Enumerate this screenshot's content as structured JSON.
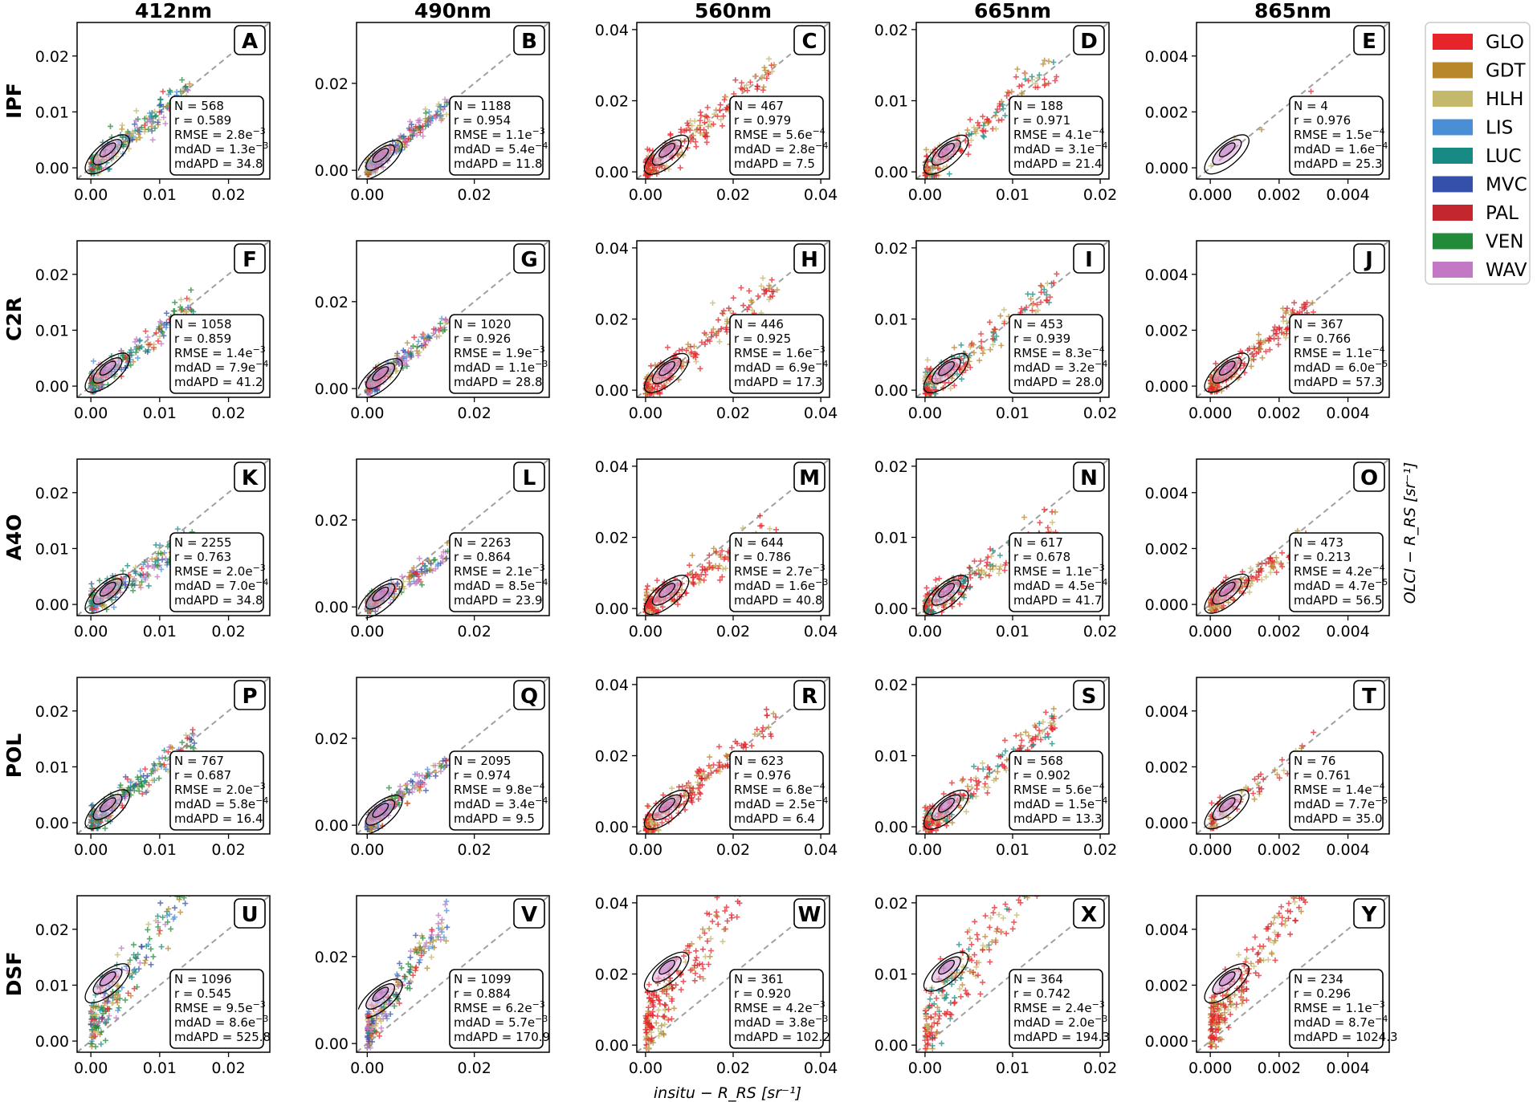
{
  "column_headers": [
    "412nm",
    "490nm",
    "560nm",
    "665nm",
    "865nm"
  ],
  "row_headers": [
    "IPF",
    "C2R",
    "A4O",
    "POL",
    "DSF"
  ],
  "legend": [
    {
      "name": "GLO",
      "color": "#e8242b"
    },
    {
      "name": "GDT",
      "color": "#b8862b"
    },
    {
      "name": "HLH",
      "color": "#c4b86a"
    },
    {
      "name": "LIS",
      "color": "#4a8fd6"
    },
    {
      "name": "LUC",
      "color": "#178a84"
    },
    {
      "name": "MVC",
      "color": "#3550a8"
    },
    {
      "name": "PAL",
      "color": "#c4262e"
    },
    {
      "name": "VEN",
      "color": "#228b3a"
    },
    {
      "name": "WAV",
      "color": "#c278c4"
    }
  ],
  "xlabel": "insitu − R_RS [sr⁻¹]",
  "ylabel": "OLCI − R_RS [sr⁻¹]",
  "chart_data": {
    "type": "scatter",
    "columns": [
      {
        "name": "412nm",
        "xlim": [
          -0.002,
          0.026
        ],
        "ylim": [
          -0.002,
          0.026
        ],
        "xticks": [
          "0.00",
          "0.01",
          "0.02"
        ],
        "xtick_values": [
          0,
          0.01,
          0.02
        ],
        "yticks": [
          "0.00",
          "0.01",
          "0.02"
        ],
        "ytick_values": [
          0,
          0.01,
          0.02
        ]
      },
      {
        "name": "490nm",
        "xlim": [
          -0.002,
          0.034
        ],
        "ylim": [
          -0.002,
          0.034
        ],
        "xticks": [
          "0.00",
          "0.02"
        ],
        "xtick_values": [
          0,
          0.02
        ],
        "yticks": [
          "0.00",
          "0.02"
        ],
        "ytick_values": [
          0,
          0.02
        ]
      },
      {
        "name": "560nm",
        "xlim": [
          -0.002,
          0.042
        ],
        "ylim": [
          -0.002,
          0.042
        ],
        "xticks": [
          "0.00",
          "0.02",
          "0.04"
        ],
        "xtick_values": [
          0,
          0.02,
          0.04
        ],
        "yticks": [
          "0.00",
          "0.02",
          "0.04"
        ],
        "ytick_values": [
          0,
          0.02,
          0.04
        ]
      },
      {
        "name": "665nm",
        "xlim": [
          -0.001,
          0.021
        ],
        "ylim": [
          -0.001,
          0.021
        ],
        "xticks": [
          "0.00",
          "0.01",
          "0.02"
        ],
        "xtick_values": [
          0,
          0.01,
          0.02
        ],
        "yticks": [
          "0.00",
          "0.01",
          "0.02"
        ],
        "ytick_values": [
          0,
          0.01,
          0.02
        ]
      },
      {
        "name": "865nm",
        "xlim": [
          -0.0004,
          0.0052
        ],
        "ylim": [
          -0.0004,
          0.0052
        ],
        "xticks": [
          "0.000",
          "0.002",
          "0.004"
        ],
        "xtick_values": [
          0,
          0.002,
          0.004
        ],
        "yticks": [
          "0.000",
          "0.002",
          "0.004"
        ],
        "ytick_values": [
          0,
          0.002,
          0.004
        ]
      }
    ],
    "panels": [
      {
        "letter": "A",
        "row": 0,
        "col": 0,
        "N": "568",
        "r": "0.589",
        "RMSE": "2.8e",
        "RMSE_exp": "−3",
        "mdAD": "1.3e",
        "mdAD_exp": "−3",
        "mdAPD": "34.8"
      },
      {
        "letter": "B",
        "row": 0,
        "col": 1,
        "N": "1188",
        "r": "0.954",
        "RMSE": "1.1e",
        "RMSE_exp": "−3",
        "mdAD": "5.4e",
        "mdAD_exp": "−4",
        "mdAPD": "11.8"
      },
      {
        "letter": "C",
        "row": 0,
        "col": 2,
        "N": "467",
        "r": "0.979",
        "RMSE": "5.6e",
        "RMSE_exp": "−4",
        "mdAD": "2.8e",
        "mdAD_exp": "−4",
        "mdAPD": "7.5"
      },
      {
        "letter": "D",
        "row": 0,
        "col": 3,
        "N": "188",
        "r": "0.971",
        "RMSE": "4.1e",
        "RMSE_exp": "−4",
        "mdAD": "3.1e",
        "mdAD_exp": "−4",
        "mdAPD": "21.4"
      },
      {
        "letter": "E",
        "row": 0,
        "col": 4,
        "N": "4",
        "r": "0.976",
        "RMSE": "1.5e",
        "RMSE_exp": "−4",
        "mdAD": "1.6e",
        "mdAD_exp": "−4",
        "mdAPD": "25.3"
      },
      {
        "letter": "F",
        "row": 1,
        "col": 0,
        "N": "1058",
        "r": "0.859",
        "RMSE": "1.4e",
        "RMSE_exp": "−3",
        "mdAD": "7.9e",
        "mdAD_exp": "−4",
        "mdAPD": "41.2"
      },
      {
        "letter": "G",
        "row": 1,
        "col": 1,
        "N": "1020",
        "r": "0.926",
        "RMSE": "1.9e",
        "RMSE_exp": "−3",
        "mdAD": "1.1e",
        "mdAD_exp": "−3",
        "mdAPD": "28.8"
      },
      {
        "letter": "H",
        "row": 1,
        "col": 2,
        "N": "446",
        "r": "0.925",
        "RMSE": "1.6e",
        "RMSE_exp": "−3",
        "mdAD": "6.9e",
        "mdAD_exp": "−4",
        "mdAPD": "17.3"
      },
      {
        "letter": "I",
        "row": 1,
        "col": 3,
        "N": "453",
        "r": "0.939",
        "RMSE": "8.3e",
        "RMSE_exp": "−4",
        "mdAD": "3.2e",
        "mdAD_exp": "−4",
        "mdAPD": "28.0"
      },
      {
        "letter": "J",
        "row": 1,
        "col": 4,
        "N": "367",
        "r": "0.766",
        "RMSE": "1.1e",
        "RMSE_exp": "−4",
        "mdAD": "6.0e",
        "mdAD_exp": "−5",
        "mdAPD": "57.3"
      },
      {
        "letter": "K",
        "row": 2,
        "col": 0,
        "N": "2255",
        "r": "0.763",
        "RMSE": "2.0e",
        "RMSE_exp": "−3",
        "mdAD": "7.0e",
        "mdAD_exp": "−4",
        "mdAPD": "34.8"
      },
      {
        "letter": "L",
        "row": 2,
        "col": 1,
        "N": "2263",
        "r": "0.864",
        "RMSE": "2.1e",
        "RMSE_exp": "−3",
        "mdAD": "8.5e",
        "mdAD_exp": "−4",
        "mdAPD": "23.9"
      },
      {
        "letter": "M",
        "row": 2,
        "col": 2,
        "N": "644",
        "r": "0.786",
        "RMSE": "2.7e",
        "RMSE_exp": "−3",
        "mdAD": "1.6e",
        "mdAD_exp": "−3",
        "mdAPD": "40.8"
      },
      {
        "letter": "N",
        "row": 2,
        "col": 3,
        "N": "617",
        "r": "0.678",
        "RMSE": "1.1e",
        "RMSE_exp": "−3",
        "mdAD": "4.5e",
        "mdAD_exp": "−4",
        "mdAPD": "41.7"
      },
      {
        "letter": "O",
        "row": 2,
        "col": 4,
        "N": "473",
        "r": "0.213",
        "RMSE": "4.2e",
        "RMSE_exp": "−4",
        "mdAD": "4.7e",
        "mdAD_exp": "−5",
        "mdAPD": "56.5"
      },
      {
        "letter": "P",
        "row": 3,
        "col": 0,
        "N": "767",
        "r": "0.687",
        "RMSE": "2.0e",
        "RMSE_exp": "−3",
        "mdAD": "5.8e",
        "mdAD_exp": "−4",
        "mdAPD": "16.4"
      },
      {
        "letter": "Q",
        "row": 3,
        "col": 1,
        "N": "2095",
        "r": "0.974",
        "RMSE": "9.8e",
        "RMSE_exp": "−4",
        "mdAD": "3.4e",
        "mdAD_exp": "−4",
        "mdAPD": "9.5"
      },
      {
        "letter": "R",
        "row": 3,
        "col": 2,
        "N": "623",
        "r": "0.976",
        "RMSE": "6.8e",
        "RMSE_exp": "−4",
        "mdAD": "2.5e",
        "mdAD_exp": "−4",
        "mdAPD": "6.4"
      },
      {
        "letter": "S",
        "row": 3,
        "col": 3,
        "N": "568",
        "r": "0.902",
        "RMSE": "5.6e",
        "RMSE_exp": "−4",
        "mdAD": "1.5e",
        "mdAD_exp": "−4",
        "mdAPD": "13.3"
      },
      {
        "letter": "T",
        "row": 3,
        "col": 4,
        "N": "76",
        "r": "0.761",
        "RMSE": "1.4e",
        "RMSE_exp": "−4",
        "mdAD": "7.7e",
        "mdAD_exp": "−5",
        "mdAPD": "35.0"
      },
      {
        "letter": "U",
        "row": 4,
        "col": 0,
        "N": "1096",
        "r": "0.545",
        "RMSE": "9.5e",
        "RMSE_exp": "−3",
        "mdAD": "8.6e",
        "mdAD_exp": "−3",
        "mdAPD": "525.8"
      },
      {
        "letter": "V",
        "row": 4,
        "col": 1,
        "N": "1099",
        "r": "0.884",
        "RMSE": "6.2e",
        "RMSE_exp": "−3",
        "mdAD": "5.7e",
        "mdAD_exp": "−3",
        "mdAPD": "170.9"
      },
      {
        "letter": "W",
        "row": 4,
        "col": 2,
        "N": "361",
        "r": "0.920",
        "RMSE": "4.2e",
        "RMSE_exp": "−3",
        "mdAD": "3.8e",
        "mdAD_exp": "−3",
        "mdAPD": "102.2"
      },
      {
        "letter": "X",
        "row": 4,
        "col": 3,
        "N": "364",
        "r": "0.742",
        "RMSE": "2.4e",
        "RMSE_exp": "−3",
        "mdAD": "2.0e",
        "mdAD_exp": "−3",
        "mdAPD": "194.3"
      },
      {
        "letter": "Y",
        "row": 4,
        "col": 4,
        "N": "234",
        "r": "0.296",
        "RMSE": "1.1e",
        "RMSE_exp": "−3",
        "mdAD": "8.7e",
        "mdAD_exp": "−4",
        "mdAPD": "1024.3"
      }
    ]
  }
}
